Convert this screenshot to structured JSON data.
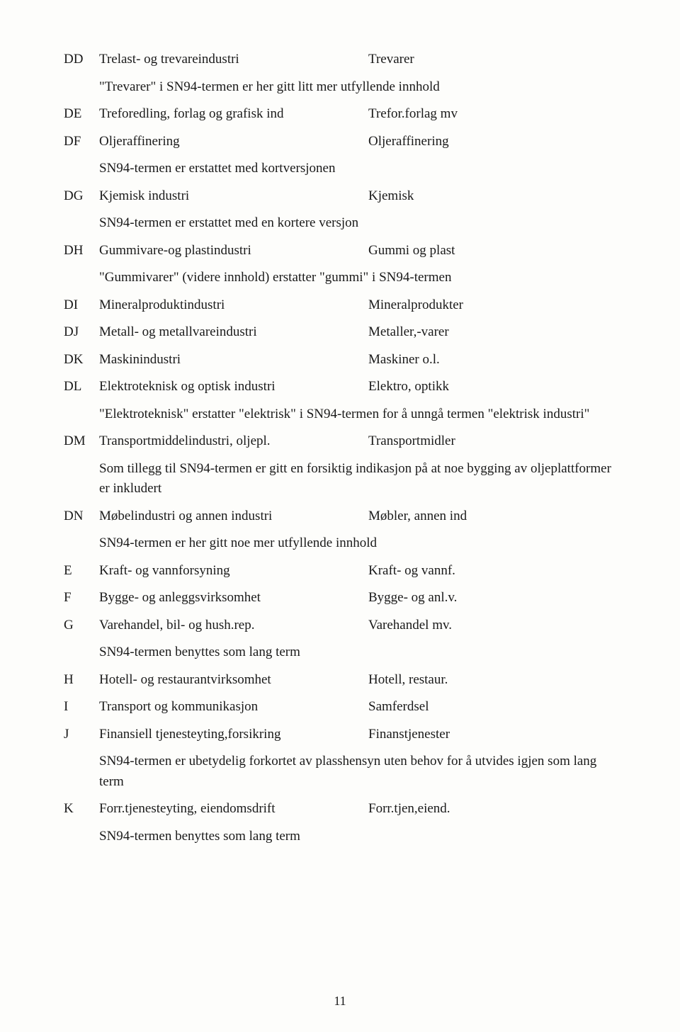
{
  "rows": [
    {
      "code": "DD",
      "left": "Trelast- og trevareindustri",
      "right": "Trevarer",
      "note": "\"Trevarer\" i SN94-termen er her gitt litt mer utfyllende innhold"
    },
    {
      "code": "DE",
      "left": "Treforedling, forlag og grafisk ind",
      "right": "Trefor.forlag mv"
    },
    {
      "code": "DF",
      "left": "Oljeraffinering",
      "right": "Oljeraffinering",
      "note": "SN94-termen er erstattet med kortversjonen"
    },
    {
      "code": "DG",
      "left": "Kjemisk industri",
      "right": "Kjemisk",
      "note": "SN94-termen er erstattet med en kortere versjon"
    },
    {
      "code": "DH",
      "left": "Gummivare-og plastindustri",
      "right": "Gummi og plast",
      "note": "\"Gummivarer\" (videre innhold) erstatter \"gummi\" i SN94-termen"
    },
    {
      "code": "DI",
      "left": "Mineralproduktindustri",
      "right": "Mineralprodukter"
    },
    {
      "code": "DJ",
      "left": "Metall- og metallvareindustri",
      "right": "Metaller,-varer"
    },
    {
      "code": "DK",
      "left": "Maskinindustri",
      "right": "Maskiner o.l."
    },
    {
      "code": "DL",
      "left": "Elektroteknisk og optisk industri",
      "right": "Elektro, optikk",
      "note": "\"Elektroteknisk\" erstatter \"elektrisk\"  i SN94-termen for å unngå termen \"elektrisk industri\""
    },
    {
      "code": "DM",
      "left": "Transportmiddelindustri, oljepl.",
      "right": "Transportmidler",
      "note": "Som tillegg til SN94-termen er gitt en forsiktig indikasjon på at noe bygging av oljeplattformer er inkludert"
    },
    {
      "code": "DN",
      "left": "Møbelindustri og annen industri",
      "right": "Møbler, annen ind",
      "note": "SN94-termen er her gitt noe mer utfyllende innhold"
    },
    {
      "code": "E",
      "left": "Kraft- og vannforsyning",
      "right": "Kraft- og vannf."
    },
    {
      "code": "F",
      "left": "Bygge- og anleggsvirksomhet",
      "right": "Bygge- og anl.v."
    },
    {
      "code": "G",
      "left": "Varehandel, bil- og hush.rep.",
      "right": "Varehandel mv.",
      "note": "SN94-termen benyttes som lang term"
    },
    {
      "code": "H",
      "left": "Hotell- og restaurantvirksomhet",
      "right": "Hotell, restaur."
    },
    {
      "code": "I",
      "left": "Transport og kommunikasjon",
      "right": "Samferdsel"
    },
    {
      "code": "J",
      "left": "Finansiell tjenesteyting,forsikring",
      "right": "Finanstjenester",
      "note": "SN94-termen er ubetydelig forkortet av plasshensyn uten behov for å utvides igjen som lang term"
    },
    {
      "code": "K",
      "left": "Forr.tjenesteyting, eiendomsdrift",
      "right": "Forr.tjen,eiend.",
      "note": "SN94-termen benyttes som lang term"
    }
  ],
  "page_number": "11"
}
